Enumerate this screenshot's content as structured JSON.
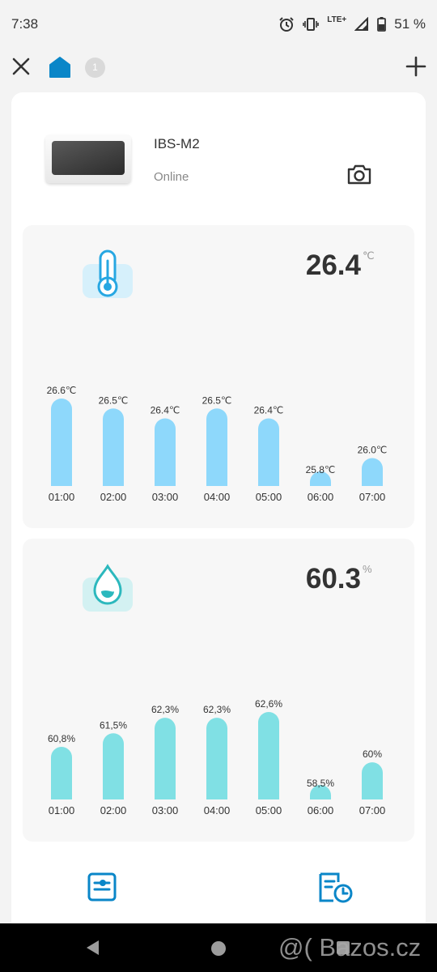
{
  "status_bar": {
    "time": "7:38",
    "network": "LTE+",
    "battery": "51 %"
  },
  "header": {
    "badge_count": "1"
  },
  "device": {
    "name": "IBS-M2",
    "status": "Online"
  },
  "temperature": {
    "value": "26.4",
    "unit": "℃",
    "chart_data": {
      "type": "bar",
      "categories": [
        "01:00",
        "02:00",
        "03:00",
        "04:00",
        "05:00",
        "06:00",
        "07:00"
      ],
      "values": [
        26.6,
        26.5,
        26.4,
        26.5,
        26.4,
        25.8,
        26.0
      ],
      "labels": [
        "26.6℃",
        "26.5℃",
        "26.4℃",
        "26.5℃",
        "26.4℃",
        "25.8℃",
        "26.0℃"
      ],
      "color": "#8ed8fb"
    }
  },
  "humidity": {
    "value": "60.3",
    "unit": "%",
    "chart_data": {
      "type": "bar",
      "categories": [
        "01:00",
        "02:00",
        "03:00",
        "04:00",
        "05:00",
        "06:00",
        "07:00"
      ],
      "values": [
        60.8,
        61.5,
        62.3,
        62.3,
        62.6,
        58.5,
        60
      ],
      "labels": [
        "60,8%",
        "61,5%",
        "62,3%",
        "62,3%",
        "62,6%",
        "58,5%",
        "60%"
      ],
      "color": "#80e0e4"
    }
  },
  "colors": {
    "accent": "#0a86c8",
    "temp_bar": "#8ed8fb",
    "hum_bar": "#80e0e4",
    "icon_bg_temp": "#d6f0fb",
    "icon_bg_hum": "#d3f1f2"
  },
  "icons": [
    "close-icon",
    "home-icon",
    "add-icon",
    "camera-icon",
    "thermometer-icon",
    "water-drop-icon",
    "settings-panel-icon",
    "history-icon",
    "back-icon",
    "home-nav-icon",
    "recents-icon"
  ],
  "nav_bar": {
    "watermark": "@( Bazos.cz"
  }
}
